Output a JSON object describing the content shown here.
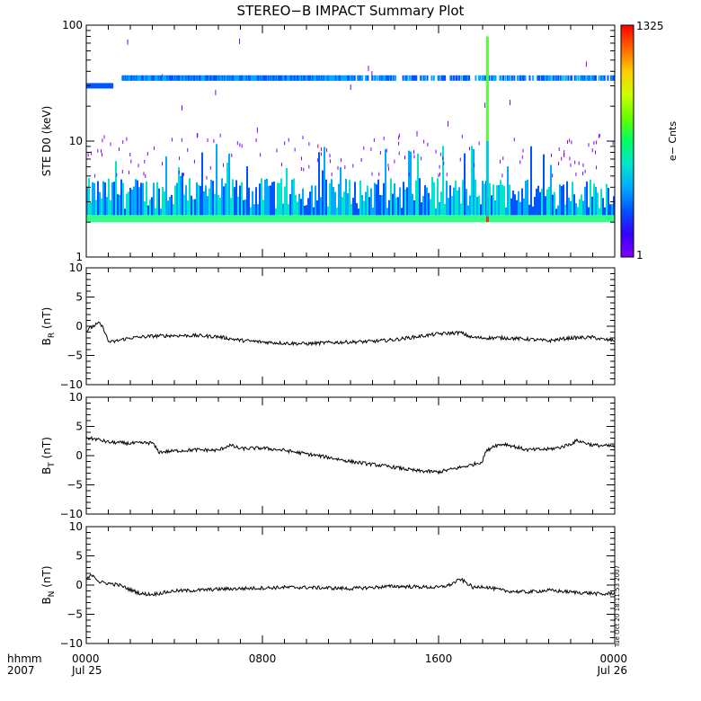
{
  "title": "STEREO−B IMPACT Summary Plot",
  "timestamp_note": "Tue Oct 20 18:11:53 2007",
  "x_axis": {
    "row1_label": "hhmm",
    "row2_label": "2007",
    "ticks": [
      {
        "t": 0,
        "time": "0000",
        "date": "Jul 25"
      },
      {
        "t": 8,
        "time": "0800",
        "date": ""
      },
      {
        "t": 16,
        "time": "1600",
        "date": ""
      },
      {
        "t": 24,
        "time": "0000",
        "date": "Jul 26"
      }
    ]
  },
  "colorbar": {
    "label": "e− Cnts",
    "max_label": "1325",
    "min_label": "1",
    "min": 1,
    "max": 1325,
    "colors": [
      "#7f00ff",
      "#3300ff",
      "#0055ff",
      "#00aaff",
      "#00e5cc",
      "#00ff66",
      "#66ff00",
      "#ccff00",
      "#ffcc00",
      "#ff6600",
      "#ff0000"
    ]
  },
  "chart_data": [
    {
      "type": "heatmap",
      "ylabel": "STE D0 (keV)",
      "yscale": "log",
      "ylim": [
        1,
        100
      ],
      "xlim": [
        0,
        24
      ],
      "ytick_labels": [
        "1",
        "10",
        "100"
      ],
      "features": {
        "low_energy_band_keV": [
          2.0,
          2.3
        ],
        "band_counts": "high (green)",
        "persistent_line_keV": 35,
        "persistent_line_start_hour": 1.6,
        "early_line_keV": 30,
        "early_line_hours": [
          0,
          1.2
        ],
        "spike_hour": 18.2,
        "spike_energy_range_keV": [
          2,
          80
        ]
      }
    },
    {
      "type": "line",
      "ylabel": "B_R (nT)",
      "ylabel_main": "B",
      "ylabel_sub": "R",
      "ylabel_unit": "(nT)",
      "ylim": [
        -10,
        10
      ],
      "ytick_labels": [
        "10",
        "5",
        "0",
        "−5",
        "−10"
      ],
      "ytick_values": [
        10,
        5,
        0,
        -5,
        -10
      ],
      "x": [
        0,
        0.2,
        0.4,
        0.6,
        0.8,
        1.0,
        1.2,
        1.6,
        2,
        3,
        4,
        5,
        6,
        7,
        8,
        9,
        10,
        11,
        12,
        13,
        14,
        15,
        16,
        17,
        17.5,
        18,
        19,
        20,
        21,
        22,
        23,
        23.5,
        24
      ],
      "values": [
        -0.8,
        -0.3,
        0.2,
        0.5,
        -0.5,
        -2.6,
        -2.7,
        -2.3,
        -2.0,
        -1.7,
        -1.6,
        -1.6,
        -1.8,
        -2.4,
        -2.7,
        -2.9,
        -3.0,
        -2.8,
        -2.7,
        -2.6,
        -2.3,
        -1.8,
        -1.3,
        -1.1,
        -1.9,
        -2.0,
        -2.0,
        -2.2,
        -2.5,
        -2.0,
        -1.9,
        -2.3,
        -2.4
      ]
    },
    {
      "type": "line",
      "ylabel": "B_T (nT)",
      "ylabel_main": "B",
      "ylabel_sub": "T",
      "ylabel_unit": "(nT)",
      "ylim": [
        -10,
        10
      ],
      "ytick_labels": [
        "10",
        "5",
        "0",
        "−5",
        "−10"
      ],
      "ytick_values": [
        10,
        5,
        0,
        -5,
        -10
      ],
      "x": [
        0,
        0.5,
        1,
        2,
        3,
        3.3,
        4,
        5,
        6,
        6.5,
        7,
        8,
        9,
        10,
        11,
        12,
        13,
        14,
        15,
        16,
        17,
        17.5,
        18,
        18.1,
        18.5,
        19,
        20,
        21,
        21.5,
        22,
        22.3,
        23,
        24
      ],
      "values": [
        3.0,
        2.8,
        2.3,
        2.1,
        2.2,
        0.6,
        0.8,
        1.0,
        0.9,
        1.8,
        1.2,
        1.3,
        0.9,
        0.3,
        -0.3,
        -1.0,
        -1.5,
        -2.0,
        -2.6,
        -2.8,
        -2.0,
        -1.6,
        -1.0,
        0.5,
        1.7,
        2.0,
        1.0,
        1.1,
        1.4,
        2.0,
        2.6,
        1.8,
        1.6
      ]
    },
    {
      "type": "line",
      "ylabel": "B_N (nT)",
      "ylabel_main": "B",
      "ylabel_sub": "N",
      "ylabel_unit": "(nT)",
      "ylim": [
        -10,
        10
      ],
      "ytick_labels": [
        "10",
        "5",
        "0",
        "−5",
        "−10"
      ],
      "ytick_values": [
        10,
        5,
        0,
        -5,
        -10
      ],
      "x": [
        0,
        0.3,
        0.6,
        1,
        1.5,
        2,
        2.5,
        3,
        4,
        5,
        6,
        7,
        8,
        9,
        10,
        11,
        12,
        13,
        14,
        15,
        16,
        16.5,
        17,
        17.3,
        17.6,
        18,
        19,
        20,
        21,
        22,
        23,
        23.5,
        24
      ],
      "values": [
        1.0,
        1.8,
        0.5,
        0.3,
        0.0,
        -0.8,
        -1.5,
        -1.6,
        -1.0,
        -0.9,
        -0.7,
        -0.6,
        -0.5,
        -0.4,
        -0.4,
        -0.5,
        -0.6,
        -0.4,
        -0.2,
        -0.3,
        -0.4,
        0.0,
        1.0,
        0.3,
        -0.5,
        -0.2,
        -1.0,
        -1.2,
        -0.9,
        -1.2,
        -1.4,
        -1.6,
        -1.3
      ]
    }
  ]
}
